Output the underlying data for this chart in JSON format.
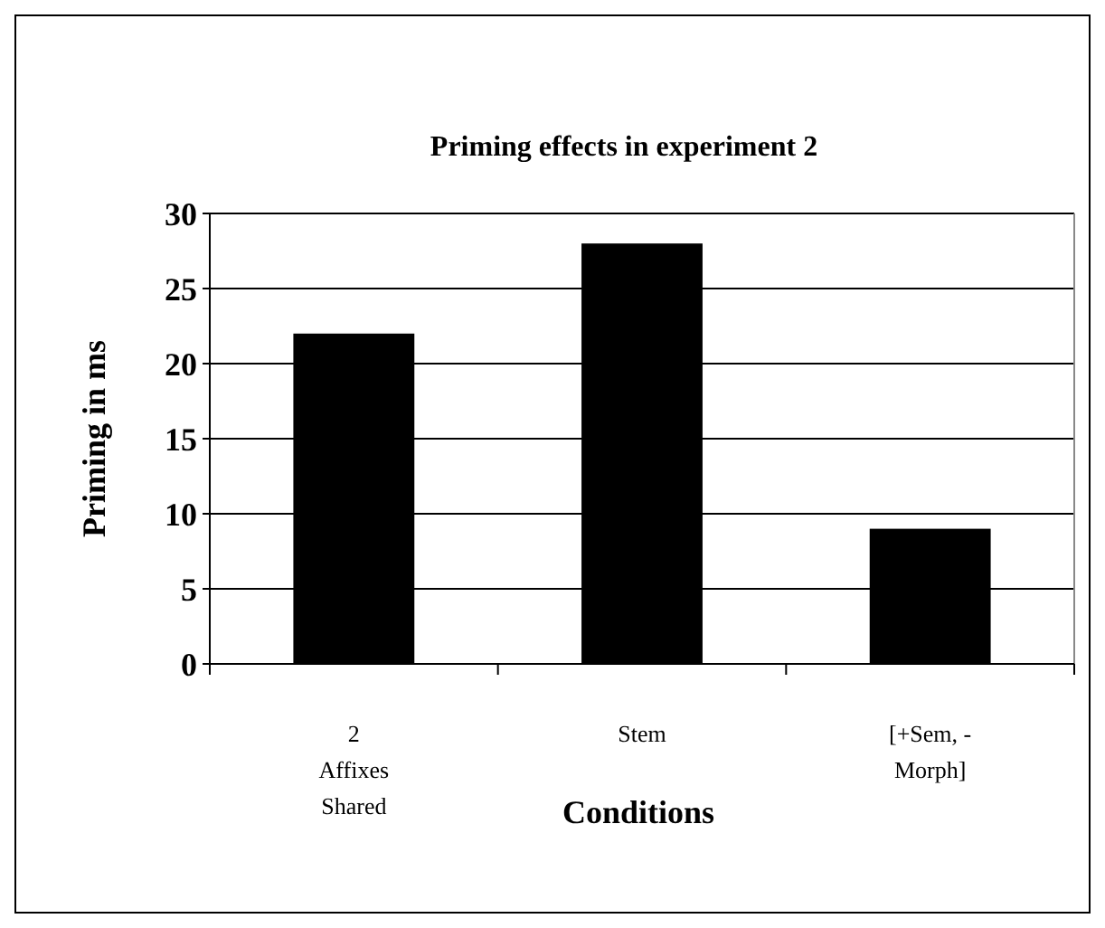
{
  "chart_data": {
    "type": "bar",
    "title": "Priming effects in experiment 2",
    "xlabel": "Conditions",
    "ylabel": "Priming in ms",
    "categories": [
      "2 Affixes Shared",
      "Stem",
      "[+Sem, - Morph]"
    ],
    "values": [
      22,
      28,
      9
    ],
    "color": "#000000",
    "ylim": [
      0,
      30
    ],
    "yticks": [
      0,
      5,
      10,
      15,
      20,
      25,
      30
    ],
    "grid": "y"
  }
}
